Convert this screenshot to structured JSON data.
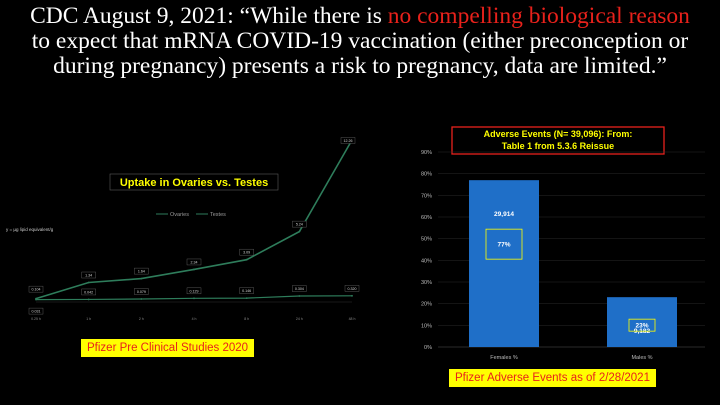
{
  "headline": {
    "part1": "CDC August 9, 2021: “While there is ",
    "red": "no compelling biological reason",
    "part2": " to expect that mRNA COVID-19 vaccination (either preconception or during pregnancy) presents a risk to pregnancy, data are limited.”"
  },
  "captions": {
    "left": "Pfizer Pre Clinical Studies 2020",
    "right": "Pfizer Adverse Events as of 2/28/2021"
  },
  "colors": {
    "line": "#2e7d5b",
    "bar": "#1f6fc8",
    "headline_red": "#e8211b",
    "caption_bg": "#ffff00",
    "caption_text": "#e8211b"
  },
  "chart_data": [
    {
      "type": "line",
      "title": "Uptake in Ovaries vs. Testes",
      "ylabel_note": "y = µg lipid equivalent/g",
      "x": [
        "0.25 h",
        "1 h",
        "2 h",
        "4 h",
        "8 h",
        "24 h",
        "48 h"
      ],
      "series": [
        {
          "name": "Ovaries",
          "values": [
            0.104,
            1.34,
            1.64,
            2.34,
            3.09,
            5.24,
            12.26
          ],
          "labels": [
            "0.104",
            "1.34",
            "1.64",
            "2.34",
            "3.09",
            "5.24",
            "12.26"
          ]
        },
        {
          "name": "Testes",
          "values": [
            0.031,
            0.042,
            0.079,
            0.129,
            0.146,
            0.304,
            0.32
          ],
          "labels": [
            "0.031",
            "0.042",
            "0.079",
            "0.129",
            "0.146",
            "0.304",
            "0.320"
          ]
        }
      ],
      "legend": "top",
      "grid": false
    },
    {
      "type": "bar",
      "title": "Adverse Events (N= 39,096): From: Table 1 from 5.3.6 Reissue",
      "categories": [
        "Females %",
        "Males %"
      ],
      "values": [
        77,
        23
      ],
      "count_labels": [
        "29,914",
        "9,182"
      ],
      "pct_labels": [
        "77%",
        "23%"
      ],
      "ylim": [
        0,
        90
      ],
      "yticks": [
        "0%",
        "10%",
        "20%",
        "30%",
        "40%",
        "50%",
        "60%",
        "70%",
        "80%",
        "90%"
      ],
      "grid": true
    }
  ]
}
